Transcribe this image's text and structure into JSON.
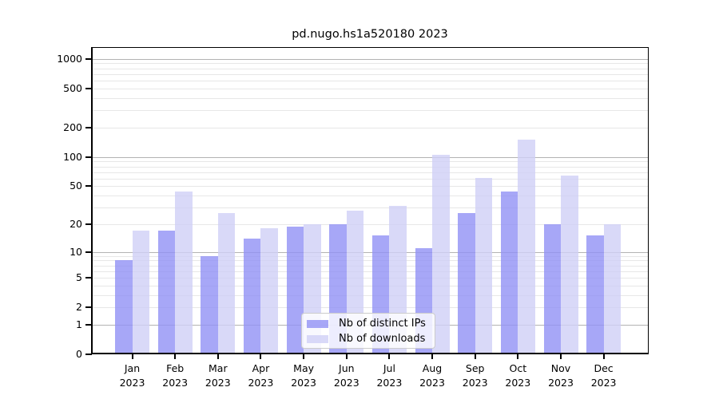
{
  "chart_data": {
    "type": "bar",
    "title": "pd.nugo.hs1a520180 2023",
    "categories": [
      "Jan",
      "Feb",
      "Mar",
      "Apr",
      "May",
      "Jun",
      "Jul",
      "Aug",
      "Sep",
      "Oct",
      "Nov",
      "Dec"
    ],
    "category_year": "2023",
    "series": [
      {
        "name": "Nb of distinct IPs",
        "color": "rgba(145,145,245,0.8)",
        "values": [
          8,
          17,
          9,
          14,
          19,
          20,
          15,
          11,
          26,
          44,
          20,
          15
        ]
      },
      {
        "name": "Nb of downloads",
        "color": "rgba(208,208,246,0.8)",
        "values": [
          17,
          44,
          26,
          18,
          20,
          28,
          31,
          105,
          61,
          150,
          64,
          20
        ]
      }
    ],
    "xlabel": "",
    "ylabel": "",
    "yscale": "log1p",
    "ytick_labels": [
      "0",
      "1",
      "2",
      "5",
      "10",
      "20",
      "50",
      "100",
      "200",
      "500",
      "1000"
    ],
    "ytick_values": [
      0,
      1,
      2,
      5,
      10,
      20,
      50,
      100,
      200,
      500,
      1000
    ],
    "ylim": [
      0,
      1320
    ],
    "grid": "on",
    "legend_position": "lower center",
    "colors": {
      "bar_distinct_ips": "rgba(145,145,245,0.8)",
      "bar_downloads": "rgba(208,208,246,0.8)",
      "grid_major": "#b3b3b3",
      "grid_minor": "#e7e7e7",
      "axis": "#000000",
      "legend_border": "#cccccc"
    }
  }
}
